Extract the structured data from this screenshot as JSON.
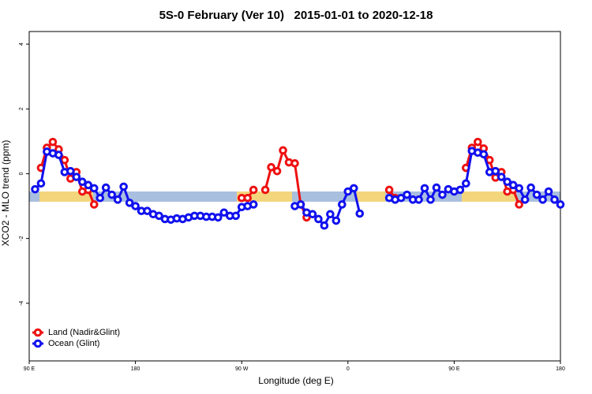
{
  "chart_data": {
    "type": "line",
    "title": "5S-0 February (Ver 10)   2015-01-01 to 2020-12-18",
    "x_label": "Longitude (deg E)",
    "y_label": "XCO2 - MLO trend (ppm)",
    "x": [
      95,
      100,
      105,
      110,
      115,
      120,
      125,
      130,
      135,
      140,
      145,
      150,
      155,
      160,
      165,
      170,
      175,
      180,
      185,
      190,
      195,
      200,
      205,
      210,
      215,
      220,
      225,
      230,
      235,
      240,
      245,
      250,
      255,
      260,
      265,
      270,
      275,
      280,
      285,
      290,
      295,
      300,
      305,
      310,
      315,
      320,
      325,
      330,
      335,
      340,
      345,
      350,
      355,
      360,
      365,
      370,
      375,
      380,
      385,
      390,
      395,
      400,
      405,
      410,
      415,
      420,
      425,
      430,
      435,
      440,
      445,
      450,
      455,
      460,
      465,
      470,
      475,
      480,
      485,
      490,
      495,
      500,
      505,
      510,
      515,
      520,
      525,
      530,
      535,
      540
    ],
    "xlim": [
      90,
      540
    ],
    "xticks": [
      {
        "value": 90,
        "label": "90 E"
      },
      180,
      {
        "value": 270,
        "label": "90 W"
      },
      {
        "value": 360,
        "label": "0"
      },
      {
        "value": 450,
        "label": "90 E"
      },
      {
        "value": 540,
        "label": "180"
      }
    ],
    "ylim": [
      -5.78,
      4.39
    ],
    "yticks": [
      4,
      2,
      0,
      -2,
      -4
    ],
    "legend": "bottom-left",
    "series": [
      {
        "name": "Land (Nadir&Glint)",
        "color": "#ee1111",
        "values": [
          null,
          0.18,
          0.8,
          0.98,
          0.75,
          0.42,
          -0.15,
          0.05,
          -0.55,
          -0.5,
          -0.95,
          null,
          null,
          null,
          null,
          null,
          null,
          null,
          null,
          null,
          null,
          null,
          null,
          null,
          null,
          null,
          null,
          null,
          null,
          null,
          null,
          null,
          null,
          null,
          null,
          -0.75,
          -0.75,
          -0.5,
          null,
          -0.5,
          0.2,
          0.08,
          0.72,
          0.35,
          0.32,
          -0.95,
          -1.35,
          null,
          null,
          null,
          null,
          null,
          null,
          null,
          null,
          null,
          null,
          null,
          null,
          null,
          -0.5,
          -0.75,
          null,
          null,
          null,
          null,
          null,
          null,
          null,
          null,
          null,
          null,
          null,
          0.18,
          0.8,
          0.98,
          0.78,
          0.42,
          -0.12,
          0.05,
          -0.55,
          -0.5,
          -0.95,
          null,
          null,
          null,
          null,
          null,
          null,
          null
        ]
      },
      {
        "name": "Ocean (Glint)",
        "color": "#1111ee",
        "values": [
          -0.48,
          -0.3,
          0.68,
          0.63,
          0.58,
          0.05,
          0.08,
          -0.1,
          -0.25,
          -0.35,
          -0.45,
          -0.75,
          -0.43,
          -0.65,
          -0.8,
          -0.4,
          -0.9,
          -1.0,
          -1.15,
          -1.15,
          -1.25,
          -1.3,
          -1.4,
          -1.42,
          -1.38,
          -1.4,
          -1.35,
          -1.3,
          -1.3,
          -1.33,
          -1.33,
          -1.35,
          -1.2,
          -1.3,
          -1.3,
          -1.03,
          -1.0,
          -0.95,
          null,
          null,
          null,
          null,
          null,
          null,
          -1.0,
          -0.95,
          -1.2,
          -1.25,
          -1.4,
          -1.6,
          -1.25,
          -1.45,
          -0.95,
          -0.55,
          -0.45,
          -1.23,
          null,
          null,
          null,
          null,
          -0.75,
          -0.8,
          -0.75,
          -0.65,
          -0.8,
          -0.8,
          -0.45,
          -0.8,
          -0.43,
          -0.65,
          -0.48,
          -0.55,
          -0.5,
          -0.3,
          0.7,
          0.65,
          0.6,
          0.05,
          0.08,
          -0.1,
          -0.25,
          -0.35,
          -0.45,
          -0.8,
          -0.43,
          -0.65,
          -0.8,
          -0.55,
          -0.8,
          -0.95
        ]
      }
    ]
  }
}
